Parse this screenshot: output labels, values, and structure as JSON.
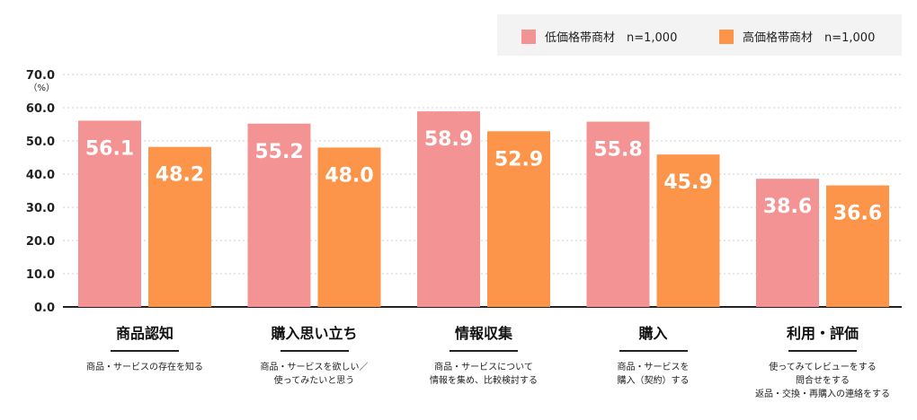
{
  "colors": {
    "low": "#f49393",
    "high": "#fc9449",
    "grid": "#cfcfcf",
    "axis": "#222222"
  },
  "legend": {
    "items": [
      {
        "label": "低価格帯商材　n=1,000",
        "color": "#f49393"
      },
      {
        "label": "高価格帯商材　n=1,000",
        "color": "#fc9449"
      }
    ]
  },
  "chart_data": {
    "type": "bar",
    "categories": [
      "商品認知",
      "購入思い立ち",
      "情報収集",
      "購入",
      "利用・評価"
    ],
    "descriptions": [
      [
        "商品・サービスの存在を知る"
      ],
      [
        "商品・サービスを欲しい／",
        "使ってみたいと思う"
      ],
      [
        "商品・サービスについて",
        "情報を集め、比較検討する"
      ],
      [
        "商品・サービスを",
        "購入（契約）する"
      ],
      [
        "使ってみてレビューをする",
        "問合せをする",
        "返品・交換・再購入の連絡をする"
      ]
    ],
    "series": [
      {
        "name": "低価格帯商材　n=1,000",
        "values": [
          56.1,
          55.2,
          58.9,
          55.8,
          38.6
        ]
      },
      {
        "name": "高価格帯商材　n=1,000",
        "values": [
          48.2,
          48.0,
          52.9,
          45.9,
          36.6
        ]
      }
    ],
    "value_labels": [
      [
        "56.1",
        "55.2",
        "58.9",
        "55.8",
        "38.6"
      ],
      [
        "48.2",
        "48.0",
        "52.9",
        "45.9",
        "36.6"
      ]
    ],
    "y_ticks": [
      "0.0",
      "10.0",
      "20.0",
      "30.0",
      "40.0",
      "50.0",
      "60.0",
      "70.0"
    ],
    "y_unit": "（%）",
    "ylim": [
      0,
      70
    ],
    "grid": true,
    "legend_position": "top-right"
  }
}
